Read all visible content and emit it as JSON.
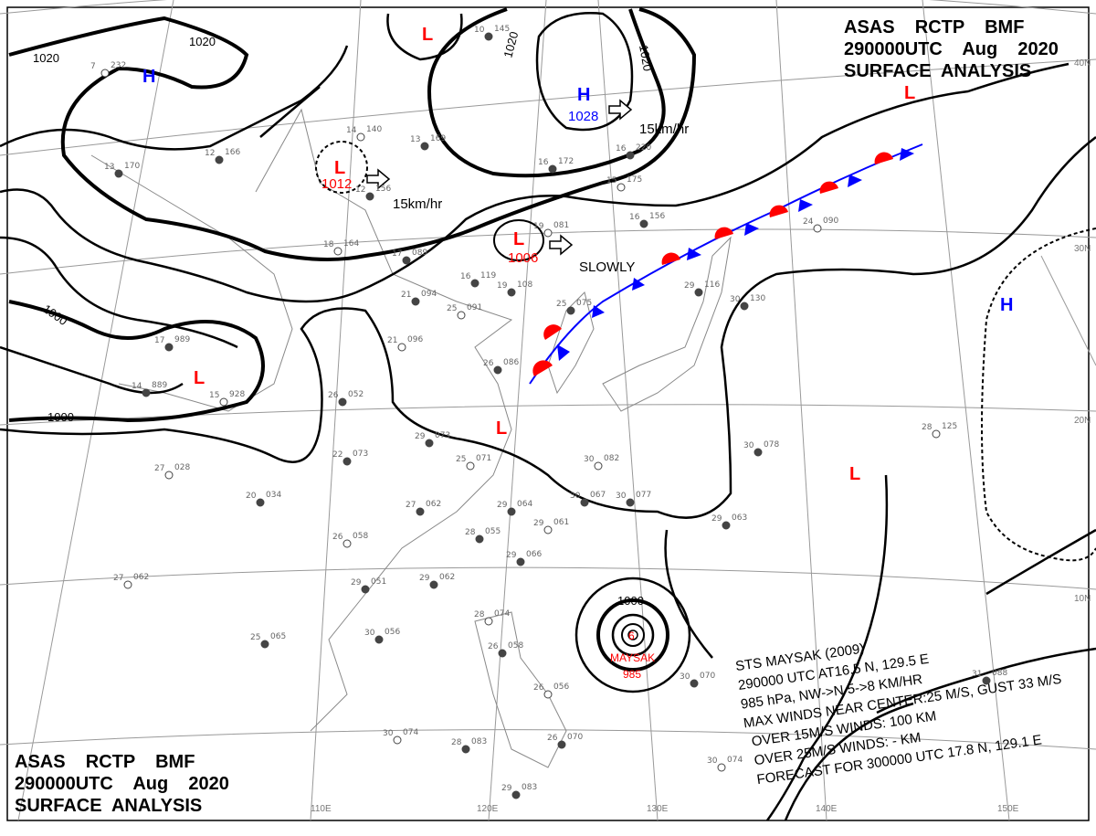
{
  "header_top": {
    "line1": "ASAS    RCTP    BMF",
    "line2": "290000UTC    Aug    2020",
    "line3": "SURFACE  ANALYSIS"
  },
  "header_bottom": {
    "line1": "ASAS    RCTP    BMF",
    "line2": "290000UTC    Aug    2020",
    "line3": "SURFACE  ANALYSIS"
  },
  "colors": {
    "low": "#ff0000",
    "high": "#0000ff",
    "warm_front": "#ff0000",
    "cold_front": "#0000ff",
    "isobar": "#000000",
    "grid": "#999999"
  },
  "pressure_centers": [
    {
      "type": "H",
      "label": "H"
    },
    {
      "type": "L",
      "label": "L"
    },
    {
      "type": "L",
      "label": "L",
      "value": "1012"
    },
    {
      "type": "H",
      "label": "H",
      "value": "1028"
    },
    {
      "type": "L",
      "label": "L",
      "value": "1006"
    },
    {
      "type": "L",
      "label": "L"
    },
    {
      "type": "L",
      "label": "L"
    },
    {
      "type": "L",
      "label": "L"
    },
    {
      "type": "H",
      "label": "H"
    },
    {
      "type": "L",
      "label": "L"
    }
  ],
  "isobar_labels": [
    "1020",
    "1020",
    "1020",
    "1020",
    "1000",
    "1000",
    "1000"
  ],
  "movements": [
    "15km/hr",
    "15km/hr",
    "SLOWLY"
  ],
  "latitudes": [
    "40N",
    "30N",
    "20N",
    "10N"
  ],
  "longitudes": [
    "110E",
    "120E",
    "130E",
    "140E",
    "150E"
  ],
  "typhoon": {
    "name": "MAYSAK",
    "pressure": "985",
    "info": [
      "STS  MAYSAK  (2009)",
      "290000 UTC  AT16.5 N, 129.5 E",
      "985 hPa, NW->N  5->8 KM/HR",
      "MAX WINDS NEAR CENTER:25 M/S, GUST 33 M/S",
      "OVER 15M/S WINDS: 100 KM",
      "OVER 25M/S WINDS: - KM",
      "FORECAST FOR 300000 UTC 17.8 N, 129.1 E"
    ]
  },
  "stations": [
    {
      "t": "7",
      "p": "232"
    },
    {
      "t": "12",
      "p": "166"
    },
    {
      "t": "13",
      "p": "170"
    },
    {
      "t": "14",
      "p": "140"
    },
    {
      "t": "13",
      "p": "169"
    },
    {
      "t": "12",
      "p": "156"
    },
    {
      "t": "18",
      "p": "164"
    },
    {
      "t": "17",
      "p": "089"
    },
    {
      "t": "16",
      "p": "119"
    },
    {
      "t": "19",
      "p": "081"
    },
    {
      "t": "16",
      "p": "172"
    },
    {
      "t": "16",
      "p": "220"
    },
    {
      "t": "15",
      "p": "175"
    },
    {
      "t": "16",
      "p": "156"
    },
    {
      "t": "21",
      "p": "094"
    },
    {
      "t": "25",
      "p": "091"
    },
    {
      "t": "19",
      "p": "108"
    },
    {
      "t": "25",
      "p": "075"
    },
    {
      "t": "21",
      "p": "096"
    },
    {
      "t": "26",
      "p": "086"
    },
    {
      "t": "14",
      "p": "889"
    },
    {
      "t": "15",
      "p": "928"
    },
    {
      "t": "26",
      "p": "052"
    },
    {
      "t": "29",
      "p": "073"
    },
    {
      "t": "25",
      "p": "071"
    },
    {
      "t": "22",
      "p": "073"
    },
    {
      "t": "20",
      "p": "034"
    },
    {
      "t": "27",
      "p": "028"
    },
    {
      "t": "27",
      "p": "062"
    },
    {
      "t": "29",
      "p": "064"
    },
    {
      "t": "30",
      "p": "082"
    },
    {
      "t": "30",
      "p": "067"
    },
    {
      "t": "30",
      "p": "077"
    },
    {
      "t": "24",
      "p": "090"
    },
    {
      "t": "29",
      "p": "116"
    },
    {
      "t": "30",
      "p": "130"
    },
    {
      "t": "28",
      "p": "125"
    },
    {
      "t": "30",
      "p": "078"
    },
    {
      "t": "29",
      "p": "063"
    },
    {
      "t": "26",
      "p": "058"
    },
    {
      "t": "28",
      "p": "055"
    },
    {
      "t": "29",
      "p": "066"
    },
    {
      "t": "29",
      "p": "061"
    },
    {
      "t": "29",
      "p": "062"
    },
    {
      "t": "29",
      "p": "051"
    },
    {
      "t": "27",
      "p": "062"
    },
    {
      "t": "25",
      "p": "065"
    },
    {
      "t": "30",
      "p": "056"
    },
    {
      "t": "28",
      "p": "074"
    },
    {
      "t": "26",
      "p": "058"
    },
    {
      "t": "26",
      "p": "070"
    },
    {
      "t": "30",
      "p": "074"
    },
    {
      "t": "28",
      "p": "083"
    },
    {
      "t": "29",
      "p": "083"
    },
    {
      "t": "26",
      "p": "056"
    },
    {
      "t": "30",
      "p": "070"
    },
    {
      "t": "31",
      "p": "088"
    },
    {
      "t": "30",
      "p": "074"
    },
    {
      "t": "17",
      "p": "989"
    },
    {
      "t": "10",
      "p": "145"
    }
  ]
}
